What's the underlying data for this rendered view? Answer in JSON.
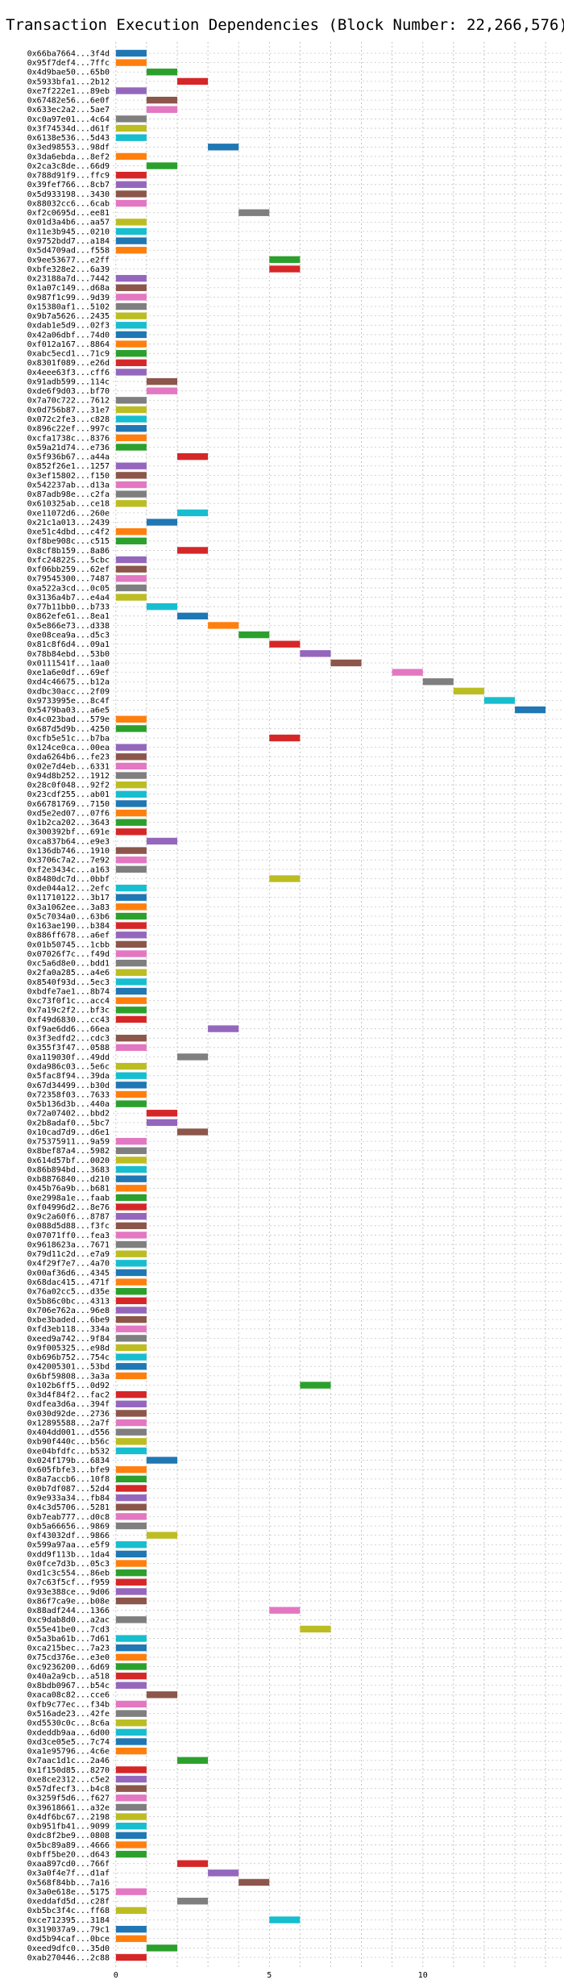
{
  "chart_data": {
    "type": "bar",
    "orientation": "horizontal-gantt",
    "title": "Transaction Execution Dependencies (Block Number: 22,266,576)",
    "xlabel": "",
    "ylabel": "",
    "xlim": [
      -0.1,
      14.6
    ],
    "xticks": [
      0,
      5,
      10
    ],
    "grid": "vertical and horizontal dotted",
    "legend": "none",
    "palette": [
      "#1f77b4",
      "#ff7f0e",
      "#2ca02c",
      "#d62728",
      "#9467bd",
      "#8c564b",
      "#e377c2",
      "#7f7f7f",
      "#bcbd22",
      "#17becf"
    ],
    "rows": [
      {
        "label": "0x66ba7664...3f4d",
        "start": 0
      },
      {
        "label": "0x95f7def4...7ffc",
        "start": 0
      },
      {
        "label": "0x4d9bae50...65b0",
        "start": 1
      },
      {
        "label": "0x5933bfa1...2b12",
        "start": 2
      },
      {
        "label": "0xe7f222e1...89eb",
        "start": 0
      },
      {
        "label": "0x67482e56...6e0f",
        "start": 1
      },
      {
        "label": "0x633ec2a2...5ae7",
        "start": 1
      },
      {
        "label": "0xc0a97e01...4c64",
        "start": 0
      },
      {
        "label": "0x3f74534d...d61f",
        "start": 0
      },
      {
        "label": "0x6138e536...5d43",
        "start": 0
      },
      {
        "label": "0x3ed98553...98df",
        "start": 3
      },
      {
        "label": "0x3da6ebda...8ef2",
        "start": 0
      },
      {
        "label": "0x2ca3c8de...66d9",
        "start": 1
      },
      {
        "label": "0x788d91f9...ffc9",
        "start": 0
      },
      {
        "label": "0x39fef766...8cb7",
        "start": 0
      },
      {
        "label": "0x5d933198...3430",
        "start": 0
      },
      {
        "label": "0x88032cc6...6cab",
        "start": 0
      },
      {
        "label": "0xf2c0695d...ee81",
        "start": 4
      },
      {
        "label": "0x01d3a4b6...aa57",
        "start": 0
      },
      {
        "label": "0x11e3b945...0210",
        "start": 0
      },
      {
        "label": "0x9752bdd7...a184",
        "start": 0
      },
      {
        "label": "0x5d4709ad...f558",
        "start": 0
      },
      {
        "label": "0x9ee53677...e2ff",
        "start": 5
      },
      {
        "label": "0xbfe328e2...6a39",
        "start": 5
      },
      {
        "label": "0x23188a7d...7442",
        "start": 0
      },
      {
        "label": "0x1a07c149...d68a",
        "start": 0
      },
      {
        "label": "0x987f1c99...9d39",
        "start": 0
      },
      {
        "label": "0x15380af1...5102",
        "start": 0
      },
      {
        "label": "0x9b7a5626...2435",
        "start": 0
      },
      {
        "label": "0xdab1e5d9...02f3",
        "start": 0
      },
      {
        "label": "0x42a06dbf...74d0",
        "start": 0
      },
      {
        "label": "0xf012a167...8864",
        "start": 0
      },
      {
        "label": "0xabc5ecd1...71c9",
        "start": 0
      },
      {
        "label": "0x8301f089...e26d",
        "start": 0
      },
      {
        "label": "0x4eee63f3...cff6",
        "start": 0
      },
      {
        "label": "0x91adb599...114c",
        "start": 1
      },
      {
        "label": "0xde6f9d03...bf70",
        "start": 1
      },
      {
        "label": "0x7a70c722...7612",
        "start": 0
      },
      {
        "label": "0x0d756b87...31e7",
        "start": 0
      },
      {
        "label": "0x072c2fe3...c828",
        "start": 0
      },
      {
        "label": "0x896c22ef...997c",
        "start": 0
      },
      {
        "label": "0xcfa1738c...8376",
        "start": 0
      },
      {
        "label": "0x59a21d74...e736",
        "start": 0
      },
      {
        "label": "0x5f936b67...a44a",
        "start": 2
      },
      {
        "label": "0x852f26e1...1257",
        "start": 0
      },
      {
        "label": "0x3ef15802...f150",
        "start": 0
      },
      {
        "label": "0x542237ab...d13a",
        "start": 0
      },
      {
        "label": "0x87adb98e...c2fa",
        "start": 0
      },
      {
        "label": "0x610325ab...ce18",
        "start": 0
      },
      {
        "label": "0xe11072d6...260e",
        "start": 2
      },
      {
        "label": "0x21c1a013...2439",
        "start": 1
      },
      {
        "label": "0xe51c4dbd...c4f2",
        "start": 0
      },
      {
        "label": "0xf8be908c...c515",
        "start": 0
      },
      {
        "label": "0x8cf8b159...8a86",
        "start": 2
      },
      {
        "label": "0xfc24822S...5cbc",
        "start": 0
      },
      {
        "label": "0xf06bb259...62ef",
        "start": 0
      },
      {
        "label": "0x79545300...7487",
        "start": 0
      },
      {
        "label": "0xa522a3cd...0c05",
        "start": 0
      },
      {
        "label": "0x3136a4b7...e4a4",
        "start": 0
      },
      {
        "label": "0x77b11bb0...b733",
        "start": 1
      },
      {
        "label": "0x862efe61...8ea1",
        "start": 2
      },
      {
        "label": "0x5e866e73...d338",
        "start": 3
      },
      {
        "label": "0xe08cea9a...d5c3",
        "start": 4
      },
      {
        "label": "0x81c8f6d4...09a1",
        "start": 5
      },
      {
        "label": "0x78b84ebd...53b0",
        "start": 6
      },
      {
        "label": "0x0111541f...1aa0",
        "start": 7
      },
      {
        "label": "0xe1a6e0df...69ef",
        "start": 9
      },
      {
        "label": "0xd4c46675...b12a",
        "start": 10
      },
      {
        "label": "0xdbc30acc...2f09",
        "start": 11
      },
      {
        "label": "0x9733995e...8c4f",
        "start": 12
      },
      {
        "label": "0x5479ba03...a6e5",
        "start": 13
      },
      {
        "label": "0x4c023bad...579e",
        "start": 0
      },
      {
        "label": "0x687d5d9b...4250",
        "start": 0
      },
      {
        "label": "0xcfb5e51c...b7ba",
        "start": 5
      },
      {
        "label": "0x124ce0ca...00ea",
        "start": 0
      },
      {
        "label": "0xda6264b6...fe23",
        "start": 0
      },
      {
        "label": "0x02e7d4eb...6331",
        "start": 0
      },
      {
        "label": "0x94d8b252...1912",
        "start": 0
      },
      {
        "label": "0x28c0f048...92f2",
        "start": 0
      },
      {
        "label": "0x23cdf255...ab01",
        "start": 0
      },
      {
        "label": "0x66781769...7150",
        "start": 0
      },
      {
        "label": "0xd5e2ed07...07f6",
        "start": 0
      },
      {
        "label": "0x1b2ca202...3643",
        "start": 0
      },
      {
        "label": "0x300392bf...691e",
        "start": 0
      },
      {
        "label": "0xca837b64...e9e3",
        "start": 1
      },
      {
        "label": "0x136db746...1910",
        "start": 0
      },
      {
        "label": "0x3706c7a2...7e92",
        "start": 0
      },
      {
        "label": "0xf2e3434c...a163",
        "start": 0
      },
      {
        "label": "0x8480dc7d...0bbf",
        "start": 5
      },
      {
        "label": "0xde044a12...2efc",
        "start": 0
      },
      {
        "label": "0x11710122...3b17",
        "start": 0
      },
      {
        "label": "0x3a1062ee...3a83",
        "start": 0
      },
      {
        "label": "0x5c7034a0...63b6",
        "start": 0
      },
      {
        "label": "0x163ae190...b384",
        "start": 0
      },
      {
        "label": "0x886ff678...a6ef",
        "start": 0
      },
      {
        "label": "0x01b50745...1cbb",
        "start": 0
      },
      {
        "label": "0x07026f7c...f49d",
        "start": 0
      },
      {
        "label": "0xc5a6d8e0...bdd1",
        "start": 0
      },
      {
        "label": "0x2fa0a285...a4e6",
        "start": 0
      },
      {
        "label": "0x8540f93d...5ec3",
        "start": 0
      },
      {
        "label": "0xbdfe7ae1...8b74",
        "start": 0
      },
      {
        "label": "0xc73f0f1c...acc4",
        "start": 0
      },
      {
        "label": "0x7a19c2f2...bf3c",
        "start": 0
      },
      {
        "label": "0xf49d6830...cc43",
        "start": 0
      },
      {
        "label": "0xf9ae6dd6...66ea",
        "start": 3
      },
      {
        "label": "0x3f3edfd2...cdc3",
        "start": 0
      },
      {
        "label": "0x355f3f47...0588",
        "start": 0
      },
      {
        "label": "0xa119030f...49dd",
        "start": 2
      },
      {
        "label": "0xda986c03...5e6c",
        "start": 0
      },
      {
        "label": "0x5fac8f94...39da",
        "start": 0
      },
      {
        "label": "0x67d34499...b30d",
        "start": 0
      },
      {
        "label": "0x72358f03...7633",
        "start": 0
      },
      {
        "label": "0x5b136d3b...440a",
        "start": 0
      },
      {
        "label": "0x72a07402...bbd2",
        "start": 1
      },
      {
        "label": "0x2b8adaf0...5bc7",
        "start": 1
      },
      {
        "label": "0x10cad7d9...d6e1",
        "start": 2
      },
      {
        "label": "0x75375911...9a59",
        "start": 0
      },
      {
        "label": "0x8bef87a4...5982",
        "start": 0
      },
      {
        "label": "0x614d57bf...0020",
        "start": 0
      },
      {
        "label": "0x86b894bd...3683",
        "start": 0
      },
      {
        "label": "0xb8876840...d210",
        "start": 0
      },
      {
        "label": "0x45b76a9b...b681",
        "start": 0
      },
      {
        "label": "0xe2998a1e...faab",
        "start": 0
      },
      {
        "label": "0xf04996d2...8e76",
        "start": 0
      },
      {
        "label": "0x9c2a60f6...8787",
        "start": 0
      },
      {
        "label": "0x088d5d88...f3fc",
        "start": 0
      },
      {
        "label": "0x07071ff0...fea3",
        "start": 0
      },
      {
        "label": "0x9618623a...7671",
        "start": 0
      },
      {
        "label": "0x79d11c2d...e7a9",
        "start": 0
      },
      {
        "label": "0x4f29f7e7...4a70",
        "start": 0
      },
      {
        "label": "0x00af36d6...4345",
        "start": 0
      },
      {
        "label": "0x68dac415...471f",
        "start": 0
      },
      {
        "label": "0x76a02cc5...d35e",
        "start": 0
      },
      {
        "label": "0x5b86c0bc...4313",
        "start": 0
      },
      {
        "label": "0x706e762a...96e8",
        "start": 0
      },
      {
        "label": "0xbe3baded...6be9",
        "start": 0
      },
      {
        "label": "0xfd3eb118...334a",
        "start": 0
      },
      {
        "label": "0xeed9a742...9f84",
        "start": 0
      },
      {
        "label": "0x9f005325...e98d",
        "start": 0
      },
      {
        "label": "0xb696b752...754c",
        "start": 0
      },
      {
        "label": "0x42005301...53bd",
        "start": 0
      },
      {
        "label": "0x6bf59808...3a3a",
        "start": 0
      },
      {
        "label": "0x102b6ff5...0d92",
        "start": 6
      },
      {
        "label": "0x3d4f84f2...fac2",
        "start": 0
      },
      {
        "label": "0xdfea3d6a...394f",
        "start": 0
      },
      {
        "label": "0x030d92de...2736",
        "start": 0
      },
      {
        "label": "0x12895588...2a7f",
        "start": 0
      },
      {
        "label": "0x404dd001...d556",
        "start": 0
      },
      {
        "label": "0xb90f440c...b56c",
        "start": 0
      },
      {
        "label": "0xe04bfdfc...b532",
        "start": 0
      },
      {
        "label": "0x024f179b...6834",
        "start": 1
      },
      {
        "label": "0x605fbfe3...bfe9",
        "start": 0
      },
      {
        "label": "0x8a7accb6...10f8",
        "start": 0
      },
      {
        "label": "0x0b7df087...52d4",
        "start": 0
      },
      {
        "label": "0x9e933a34...fb84",
        "start": 0
      },
      {
        "label": "0x4c3d5706...5281",
        "start": 0
      },
      {
        "label": "0xb7eab777...d0c8",
        "start": 0
      },
      {
        "label": "0xb5a66656...9869",
        "start": 0
      },
      {
        "label": "0xf43032df...9866",
        "start": 1
      },
      {
        "label": "0x599a97aa...e5f9",
        "start": 0
      },
      {
        "label": "0xdd9f113b...1da4",
        "start": 0
      },
      {
        "label": "0x0fce7d3b...05c3",
        "start": 0
      },
      {
        "label": "0xd1c3c554...86eb",
        "start": 0
      },
      {
        "label": "0x7c63f5cf...f959",
        "start": 0
      },
      {
        "label": "0x93e388ce...9d06",
        "start": 0
      },
      {
        "label": "0x86f7ca9e...b08e",
        "start": 0
      },
      {
        "label": "0x88adf244...1366",
        "start": 5
      },
      {
        "label": "0xc9dab8d0...a2ac",
        "start": 0
      },
      {
        "label": "0x55e41be0...7cd3",
        "start": 6
      },
      {
        "label": "0x5a3ba61b...7d61",
        "start": 0
      },
      {
        "label": "0xca215bec...7a23",
        "start": 0
      },
      {
        "label": "0x75cd376e...e3e0",
        "start": 0
      },
      {
        "label": "0xc9236200...6d69",
        "start": 0
      },
      {
        "label": "0x40a2a9cb...a518",
        "start": 0
      },
      {
        "label": "0x8bdb0967...b54c",
        "start": 0
      },
      {
        "label": "0xaca08c82...cce6",
        "start": 1
      },
      {
        "label": "0xfb9c77ec...f34b",
        "start": 0
      },
      {
        "label": "0x516ade23...42fe",
        "start": 0
      },
      {
        "label": "0xd5530c0c...8c6a",
        "start": 0
      },
      {
        "label": "0xdeddb9aa...6d00",
        "start": 0
      },
      {
        "label": "0xd3ce05e5...7c74",
        "start": 0
      },
      {
        "label": "0xa1e95796...4c6e",
        "start": 0
      },
      {
        "label": "0x7aac1d1c...2a46",
        "start": 2
      },
      {
        "label": "0x1f150d85...8270",
        "start": 0
      },
      {
        "label": "0xe8ce2312...c5e2",
        "start": 0
      },
      {
        "label": "0x57dfecf3...b4c8",
        "start": 0
      },
      {
        "label": "0x3259f5d6...f627",
        "start": 0
      },
      {
        "label": "0x39618661...a32e",
        "start": 0
      },
      {
        "label": "0x4df6bc67...2198",
        "start": 0
      },
      {
        "label": "0xb951fb41...9099",
        "start": 0
      },
      {
        "label": "0xdc8f2be9...0808",
        "start": 0
      },
      {
        "label": "0x5bc89a89...4666",
        "start": 0
      },
      {
        "label": "0xbff5be20...d643",
        "start": 0
      },
      {
        "label": "0xaa897cd0...766f",
        "start": 2
      },
      {
        "label": "0x3a0f4e7f...d1af",
        "start": 3
      },
      {
        "label": "0x568f84bb...7a16",
        "start": 4
      },
      {
        "label": "0x3a0e618e...5175",
        "start": 0
      },
      {
        "label": "0xeddafd5d...c28f",
        "start": 2
      },
      {
        "label": "0xb5bc3f4c...ff68",
        "start": 0
      },
      {
        "label": "0xce712395...3184",
        "start": 5
      },
      {
        "label": "0x319037a9...79c1",
        "start": 0
      },
      {
        "label": "0xd5b94caf...0bce",
        "start": 0
      },
      {
        "label": "0xeed9dfc0...35d0",
        "start": 1
      },
      {
        "label": "0xab270446...2c88",
        "start": 0
      }
    ]
  }
}
